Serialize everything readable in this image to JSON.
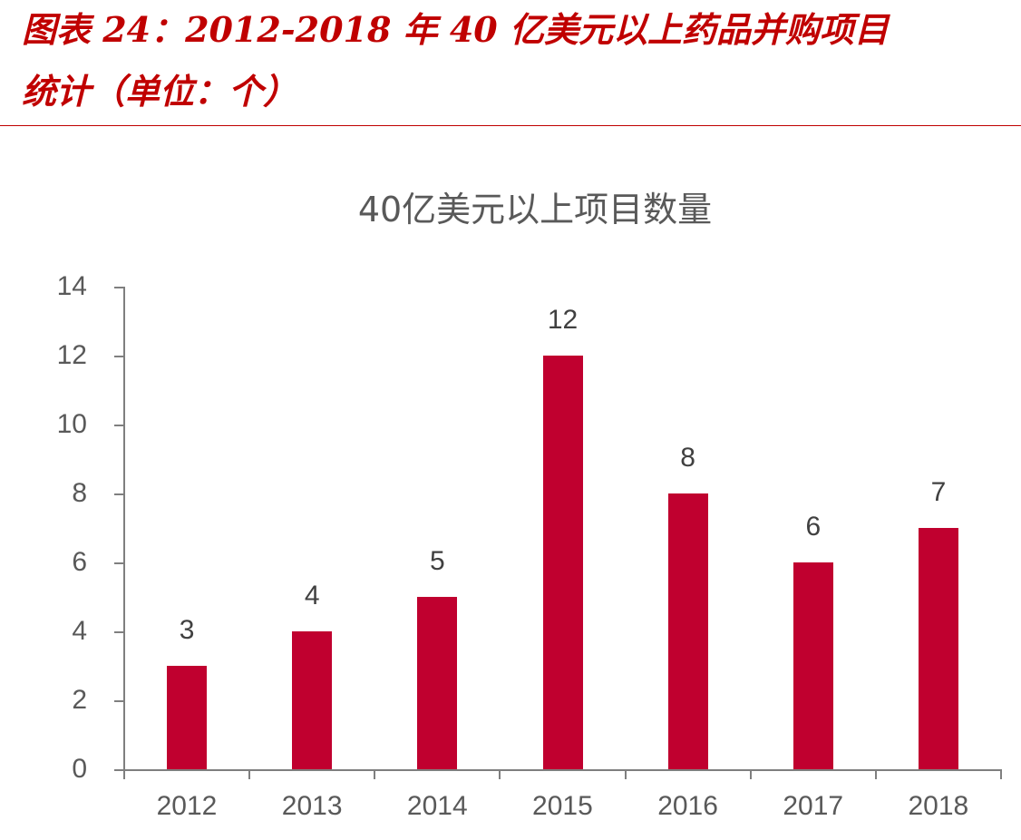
{
  "figure": {
    "title_line1": "图表 24：2012-2018 年 40 亿美元以上药品并购项目",
    "title_line2": "统计（单位：个）",
    "accent_color": "#c00000"
  },
  "chart_data": {
    "type": "bar",
    "title": "40亿美元以上项目数量",
    "categories": [
      "2012",
      "2013",
      "2014",
      "2015",
      "2016",
      "2017",
      "2018"
    ],
    "values": [
      3,
      4,
      5,
      12,
      8,
      6,
      7
    ],
    "data_labels": [
      "3",
      "4",
      "5",
      "12",
      "8",
      "6",
      "7"
    ],
    "xlabel": "",
    "ylabel": "",
    "ylim": [
      0,
      14
    ],
    "yticks": [
      "0",
      "2",
      "4",
      "6",
      "8",
      "10",
      "12",
      "14"
    ],
    "grid": false,
    "legend": "none",
    "bar_color": "#c0002f"
  }
}
